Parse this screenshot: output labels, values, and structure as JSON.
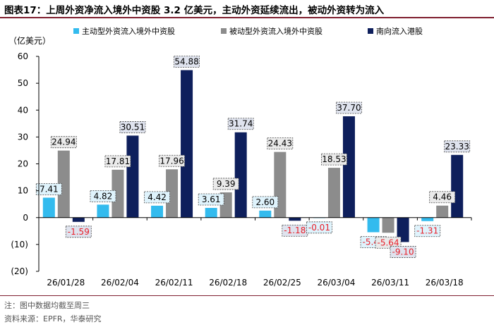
{
  "title": "图表17：上周外资净流入境外中资股 3.2 亿美元，主动外资延续流出，被动外资转为流入",
  "notes": [
    "注：图中数据均截至周三",
    "资料来源：EPFR，华泰研究"
  ],
  "colors": {
    "active": "#33bbee",
    "passive": "#8c8c8c",
    "southbound": "#0e1f5c",
    "negative_label": "#e8202a",
    "rule": "#7f1f2f"
  },
  "chart_data": {
    "type": "bar",
    "title": "上周外资净流入境外中资股 3.2 亿美元，主动外资延续流出，被动外资转为流入",
    "ylabel": "（亿美元）",
    "xlabel": "",
    "ylim": [
      -20,
      60
    ],
    "yticks": [
      -20,
      -10,
      0,
      10,
      20,
      30,
      40,
      50,
      60
    ],
    "ytick_labels": [
      "(20)",
      "(10)",
      "0",
      "10",
      "20",
      "30",
      "40",
      "50",
      "60"
    ],
    "legend_position": "top",
    "grid": false,
    "categories": [
      "26/01/28",
      "26/02/04",
      "26/02/11",
      "26/02/18",
      "26/02/25",
      "26/03/04",
      "26/03/11",
      "26/03/18"
    ],
    "series": [
      {
        "name": "主动型外资流入境外中资股",
        "values": [
          7.41,
          4.82,
          4.42,
          3.61,
          2.6,
          -0.01,
          -5.45,
          -1.31
        ],
        "labels": [
          "7.41",
          "4.82",
          "4.42",
          "3.61",
          "2.60",
          "-0.01",
          "-5.45",
          "-1.31"
        ]
      },
      {
        "name": "被动型外资流入境外中资股",
        "values": [
          24.94,
          17.81,
          17.96,
          9.39,
          24.43,
          18.53,
          -5.64,
          4.46
        ],
        "labels": [
          "24.94",
          "17.81",
          "17.96",
          "9.39",
          "24.43",
          "18.53",
          "-5.64",
          "4.46"
        ]
      },
      {
        "name": "南向流入港股",
        "values": [
          -1.59,
          30.51,
          54.88,
          31.74,
          -1.18,
          37.7,
          -9.1,
          23.33
        ],
        "labels": [
          "-1.59",
          "30.51",
          "54.88",
          "31.74",
          "-1.18",
          "37.70",
          "-9.10",
          "23.33"
        ]
      }
    ]
  }
}
